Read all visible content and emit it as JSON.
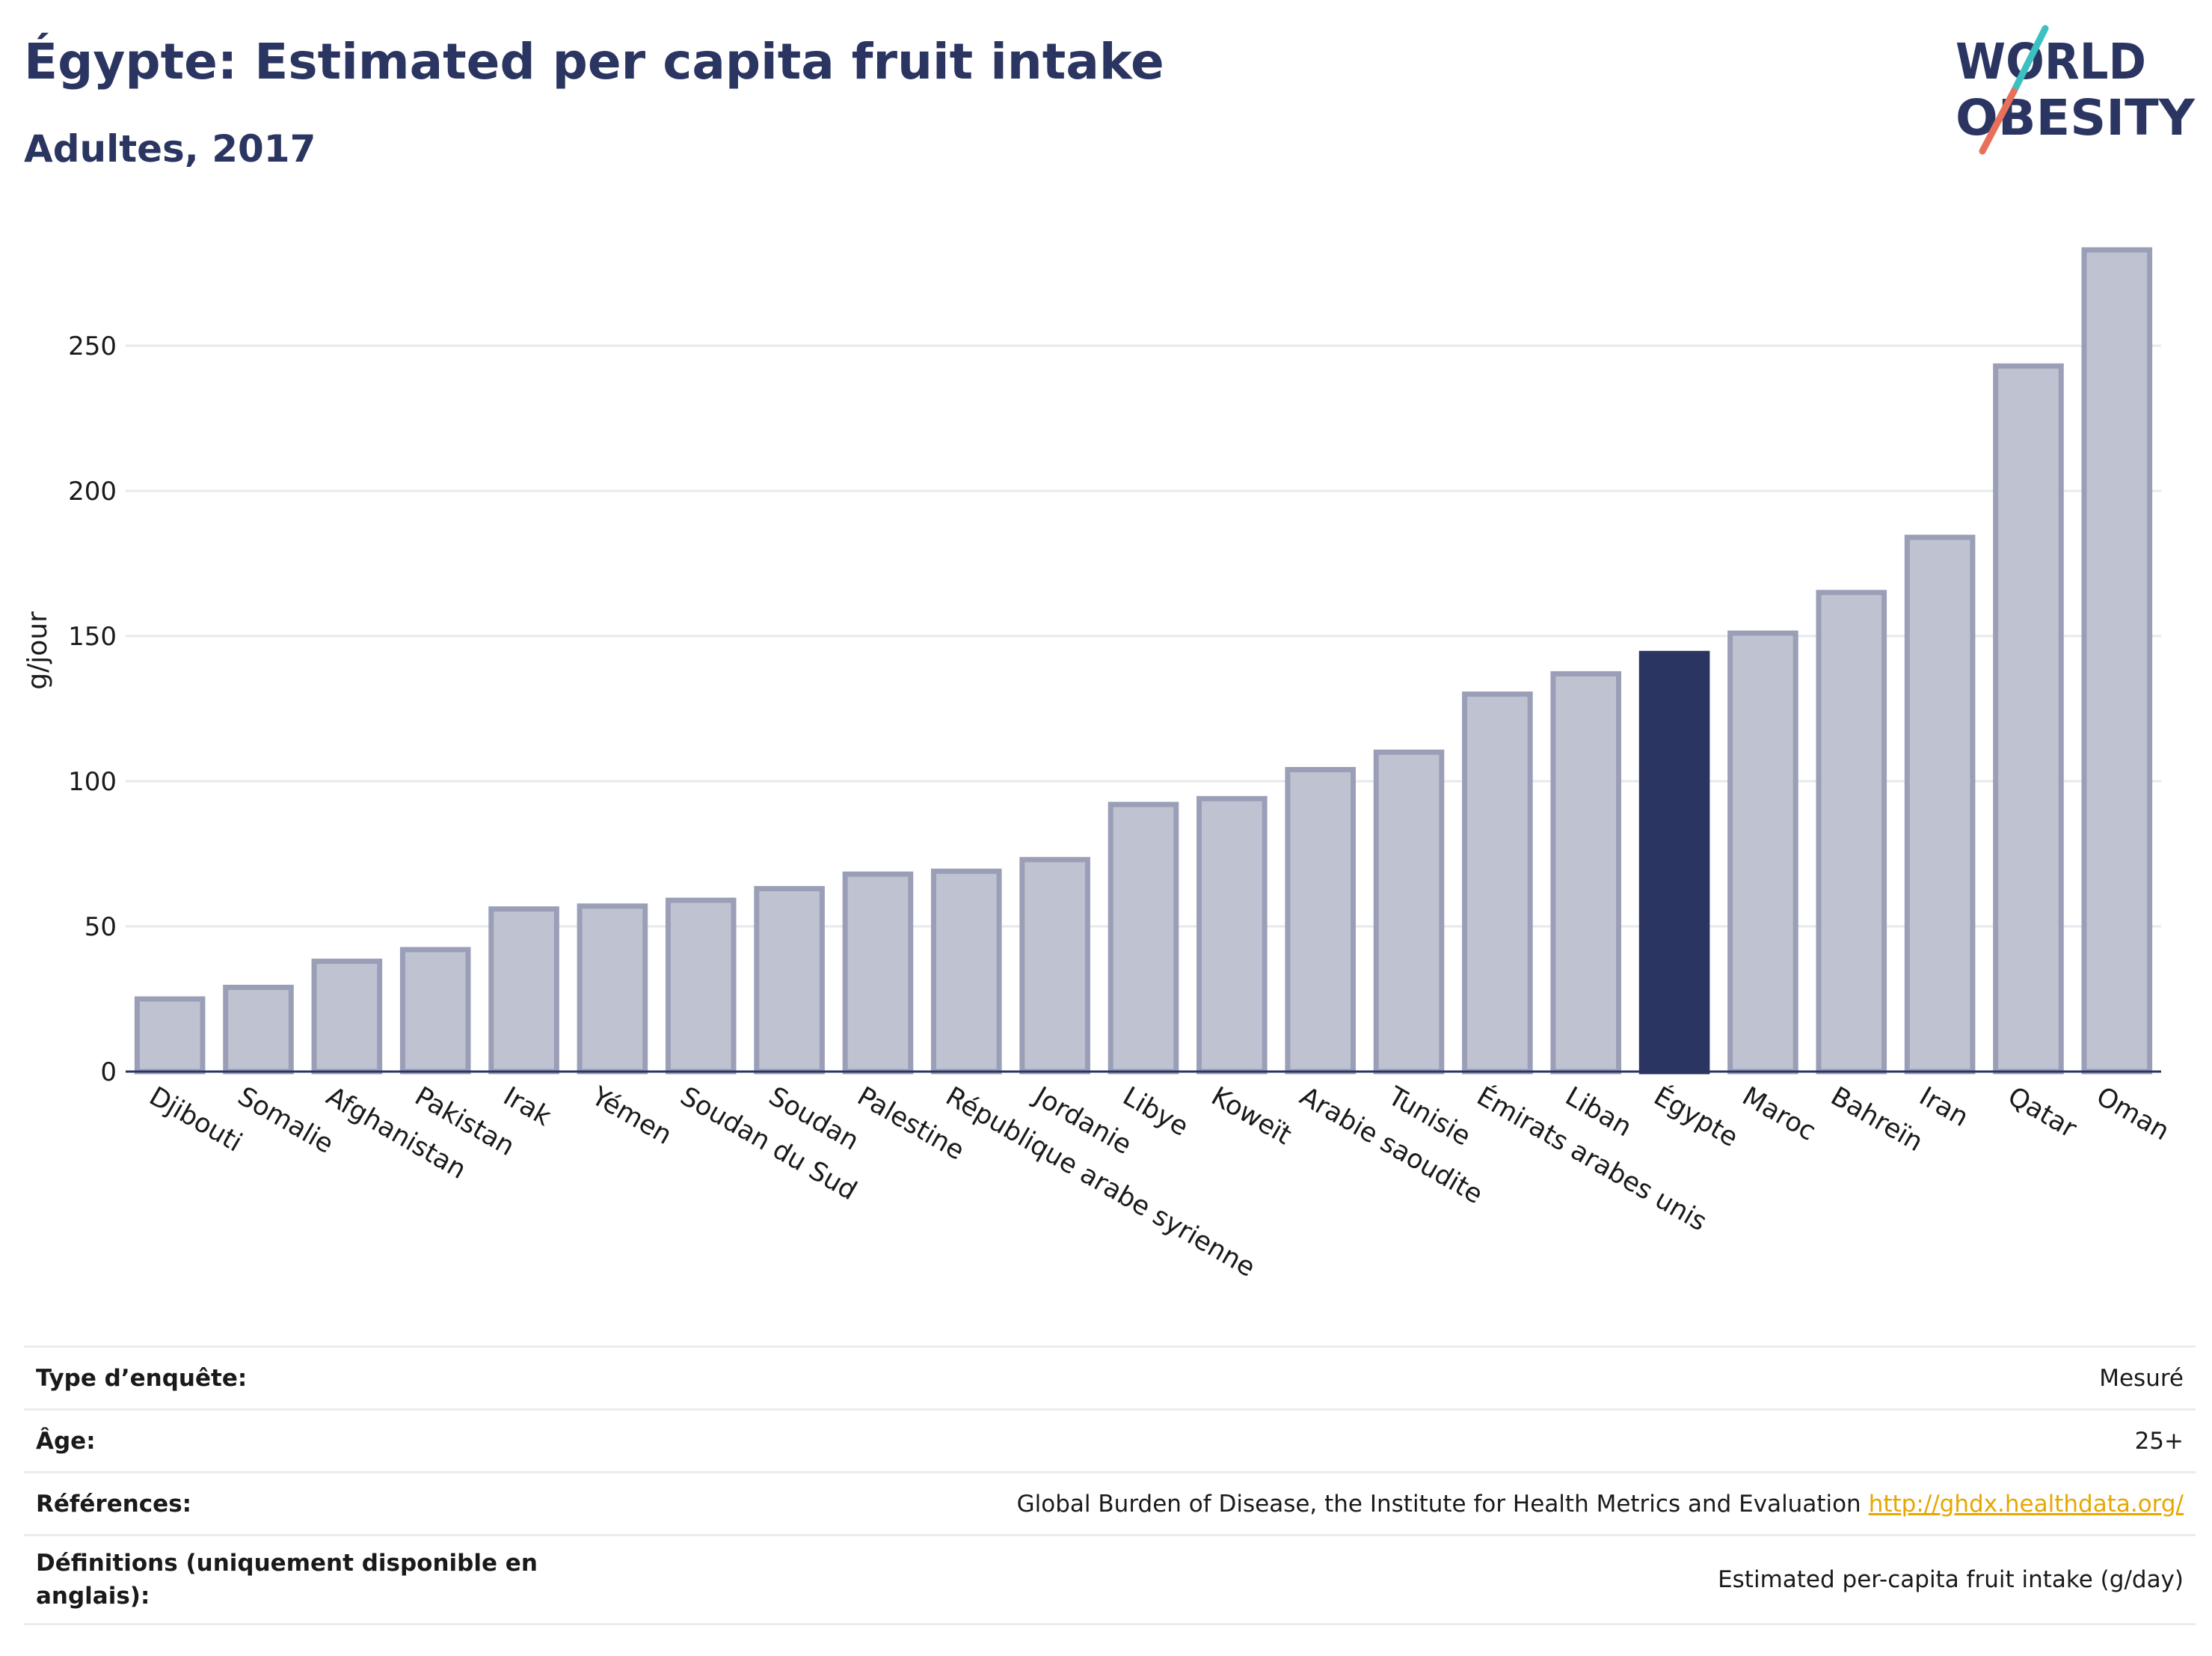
{
  "header": {
    "title": "Égypte: Estimated per capita fruit intake",
    "subtitle": "Adultes, 2017"
  },
  "logo": {
    "line1": "WORLD",
    "line2": "OBESITY"
  },
  "colors": {
    "bar_fill": "#bfc3d1",
    "bar_stroke": "#9a9fb7",
    "highlight": "#2b3561",
    "gridline": "#e6e9ee",
    "axis": "#2b3561",
    "logo_teal": "#3cc0c0",
    "logo_coral": "#e8705a",
    "link": "#e6a700"
  },
  "chart_data": {
    "type": "bar",
    "title": "Égypte: Estimated per capita fruit intake",
    "subtitle": "Adultes, 2017",
    "xlabel": "",
    "ylabel": "g/jour",
    "ylim": [
      0,
      290
    ],
    "yticks": [
      0,
      50,
      100,
      150,
      200,
      250
    ],
    "grid": true,
    "highlight": "Égypte",
    "categories": [
      "Djibouti",
      "Somalie",
      "Afghanistan",
      "Pakistan",
      "Irak",
      "Yémen",
      "Soudan du Sud",
      "Soudan",
      "Palestine",
      "République arabe syrienne",
      "Jordanie",
      "Libye",
      "Koweït",
      "Arabie saoudite",
      "Tunisie",
      "Émirats arabes unis",
      "Liban",
      "Égypte",
      "Maroc",
      "Bahreïn",
      "Iran",
      "Qatar",
      "Oman"
    ],
    "values": [
      25,
      29,
      38,
      42,
      56,
      57,
      59,
      63,
      68,
      69,
      73,
      92,
      94,
      104,
      110,
      130,
      137,
      144,
      151,
      165,
      184,
      243,
      283
    ]
  },
  "info": [
    {
      "label": "Type d’enquête:",
      "value": "Mesuré"
    },
    {
      "label": "Âge:",
      "value": "25+"
    },
    {
      "label": "Références:",
      "value": "Global Burden of Disease, the Institute for Health Metrics and Evaluation",
      "link": "http://ghdx.healthdata.org/"
    },
    {
      "label": "Définitions (uniquement disponible en anglais):",
      "value": "Estimated per-capita fruit intake (g/day)"
    }
  ]
}
